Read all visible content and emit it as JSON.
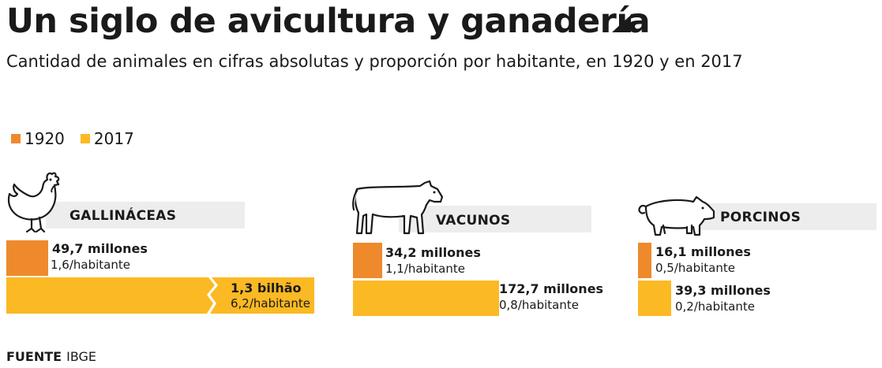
{
  "header": {
    "title": "Un siglo de avicultura y ganadería",
    "subtitle": "Cantidad de animales en cifras absolutas y proporción por habitante, en 1920 y en 2017"
  },
  "legend": [
    {
      "label": "1920",
      "color": "#ee8a2c"
    },
    {
      "label": "2017",
      "color": "#fbb923"
    }
  ],
  "chart_data": {
    "type": "bar",
    "categories": [
      "GALLINÁCEAS",
      "VACUNOS",
      "PORCINOS"
    ],
    "series": [
      {
        "name": "1920",
        "values": [
          49.7,
          34.2,
          16.1
        ],
        "labels": [
          "49,7 millones",
          "34,2 millones",
          "16,1 millones"
        ],
        "per_capita": [
          "1,6/habitante",
          "1,1/habitante",
          "0,5/habitante"
        ]
      },
      {
        "name": "2017",
        "values": [
          1300,
          172.7,
          39.3
        ],
        "labels": [
          "1,3 bilhão",
          "172,7 millones",
          "39,3 millones"
        ],
        "per_capita": [
          "6,2/habitante",
          "0,8/habitante",
          "0,2/habitante"
        ]
      }
    ],
    "axis_break": "GALLINÁCEAS 2017 bar is truncated",
    "unit": "millones"
  },
  "source": {
    "label": "FUENTE",
    "value": "IBGE"
  },
  "colors": {
    "c1920": "#ee8a2c",
    "c2017": "#fbb923",
    "band": "#ededed",
    "text": "#1a1a1a"
  },
  "icons": [
    "chicken-icon",
    "cow-icon",
    "pig-icon",
    "triangle-arrow-icon"
  ]
}
